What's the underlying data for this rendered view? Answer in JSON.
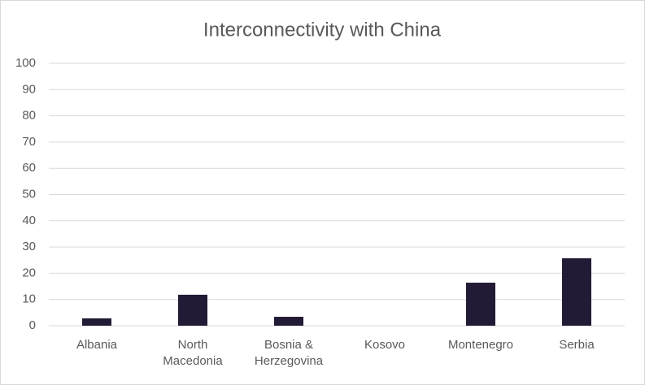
{
  "chart_data": {
    "type": "bar",
    "title": "Interconnectivity with China",
    "categories": [
      "Albania",
      "North Macedonia",
      "Bosnia & Herzegovina",
      "Kosovo",
      "Montenegro",
      "Serbia"
    ],
    "values": [
      2.8,
      11.8,
      3.4,
      0,
      16.4,
      25.7
    ],
    "color": "#231a35",
    "ylim": [
      0,
      100
    ],
    "yticks": [
      0,
      10,
      20,
      30,
      40,
      50,
      60,
      70,
      80,
      90,
      100
    ],
    "grid": true
  }
}
